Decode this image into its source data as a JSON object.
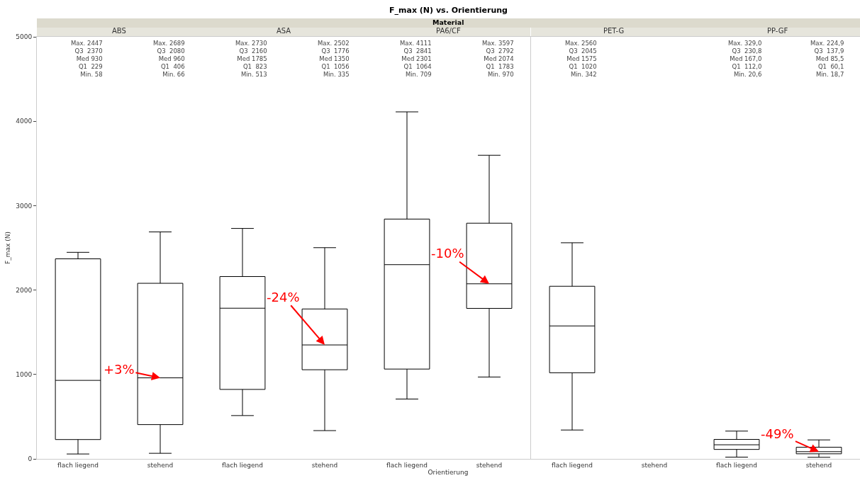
{
  "chart_data": [
    {
      "type": "box",
      "title": "ABS",
      "ylabel": "F_max (N)",
      "categories": [
        "flach liegend",
        "stehend"
      ],
      "ylim": [
        0,
        5000
      ],
      "yticks": [
        0,
        1000,
        2000,
        3000,
        4000,
        5000
      ],
      "boxes": [
        {
          "low": 58,
          "q1": 229,
          "median": 930,
          "q3": 2370,
          "high": 2447
        },
        {
          "low": 66,
          "q1": 406,
          "median": 960,
          "q3": 2080,
          "high": 2689
        }
      ],
      "annotations": [
        "Max. 2447\nQ3  2370\nMed 930\nQ1  229\nMin. 58",
        "Max. 2689\nQ3  2080\nMed 960\nQ1  406\nMin. 66",
        {
          "text": "+3%",
          "x": "stehend",
          "y": 960
        }
      ]
    },
    {
      "type": "box",
      "title": "ASA",
      "categories": [
        "flach liegend",
        "stehend"
      ],
      "ylim": [
        0,
        5000
      ],
      "yticks": [
        0,
        1000,
        2000,
        3000,
        4000,
        5000
      ],
      "tick_labels": "x",
      "boxes": [
        {
          "low": 513,
          "q1": 823,
          "median": 1785,
          "q3": 2160,
          "high": 2730
        },
        {
          "low": 335,
          "q1": 1056,
          "median": 1350,
          "q3": 1776,
          "high": 2502
        }
      ],
      "annotations": [
        "Max. 2730\nQ3  2160\nMed 1785\nQ1  823\nMin. 513",
        "Max. 2502\nQ3  1776\nMed 1350\nQ1  1056\nMin. 335",
        {
          "text": "-24%",
          "x": "stehend",
          "y": 1350
        }
      ]
    },
    {
      "type": "box",
      "title": "PA6/CF",
      "xlabel": "Orientierung",
      "categories": [
        "flach liegend",
        "stehend"
      ],
      "ylim": [
        0,
        5000
      ],
      "yticks": [
        0,
        1000,
        2000,
        3000,
        4000,
        5000
      ],
      "tick_labels": "x",
      "boxes": [
        {
          "low": 709,
          "q1": 1064,
          "median": 2301,
          "q3": 2841,
          "high": 4111
        },
        {
          "low": 970,
          "q1": 1783,
          "median": 2074,
          "q3": 2792,
          "high": 3597
        }
      ],
      "annotations": [
        "Max. 4111\nQ3  2841\nMed 2301\nQ1  1064\nMin. 709",
        "Max. 3597\nQ3  2792\nMed 2074\nQ1  1783\nMin. 970",
        "F_max (N) vs. Orientierung",
        "Material",
        {
          "text": "-10%",
          "x": "stehend",
          "y": 2074
        }
      ]
    },
    {
      "type": "box",
      "title": "PET-G",
      "categories": [
        "flach liegend",
        "stehend"
      ],
      "ylim": [
        0,
        5000
      ],
      "yticks": [
        0,
        1000,
        2000,
        3000,
        4000,
        5000
      ],
      "tick_labels": "x",
      "boxes": [
        {
          "low": 342,
          "q1": 1020,
          "median": 1575,
          "q3": 2045,
          "high": 2560
        },
        null
      ],
      "annotations": [
        "Max. 2560\nQ3  2045\nMed 1575\nQ1  1020\nMin. 342"
      ]
    },
    {
      "type": "box",
      "title": "PP-GF",
      "categories": [
        "flach liegend",
        "stehend"
      ],
      "ylim": [
        0,
        5000
      ],
      "yticks": [
        0,
        1000,
        2000,
        3000,
        4000,
        5000
      ],
      "tick_labels": "x",
      "boxes": [
        {
          "low": 20.6,
          "q1": 112.0,
          "median": 167.0,
          "q3": 230.8,
          "high": 329.0
        },
        {
          "low": 18.7,
          "q1": 60.1,
          "median": 85.5,
          "q3": 137.9,
          "high": 224.9
        }
      ],
      "annotations": [
        "Max. 329,0\nQ3  230,8\nMed 167,0\nQ1  112,0\nMin. 20,6",
        "Max. 224,9\nQ3  137,9\nMed 85,5\nQ1  60,1\nMin. 18,7",
        {
          "text": "-49%",
          "x": "stehend",
          "y": 85.5
        }
      ]
    }
  ]
}
